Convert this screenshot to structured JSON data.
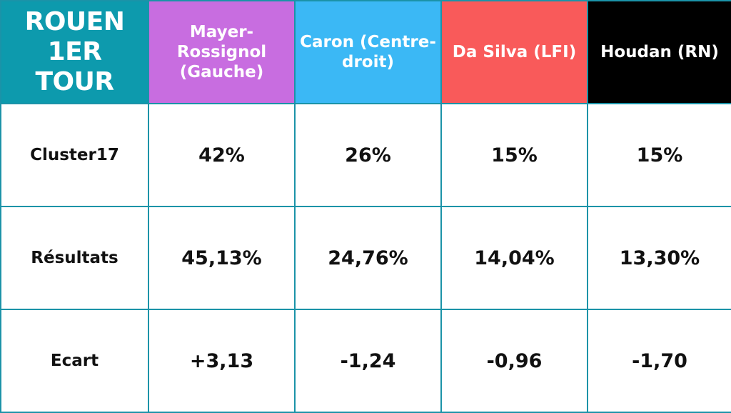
{
  "table": {
    "corner_line1": "ROUEN",
    "corner_line2": "1ER TOUR",
    "corner_color": "#0d9aad",
    "border_color": "#1b93a8"
  },
  "chart_data": {
    "type": "table",
    "title": "ROUEN 1ER TOUR",
    "columns": [
      {
        "name": "Mayer-Rossignol (Gauche)",
        "color": "#c86de0"
      },
      {
        "name": "Caron (Centre-droit)",
        "color": "#3bb8f5"
      },
      {
        "name": "Da Silva (LFI)",
        "color": "#f95a5a"
      },
      {
        "name": "Houdan (RN)",
        "color": "#000000"
      }
    ],
    "rows": [
      {
        "label": "Cluster17",
        "cells": [
          "42%",
          "26%",
          "15%",
          "15%"
        ]
      },
      {
        "label": "Résultats",
        "cells": [
          "45,13%",
          "24,76%",
          "14,04%",
          "13,30%"
        ]
      },
      {
        "label": "Ecart",
        "cells": [
          "+3,13",
          "-1,24",
          "-0,96",
          "-1,70"
        ]
      }
    ]
  }
}
